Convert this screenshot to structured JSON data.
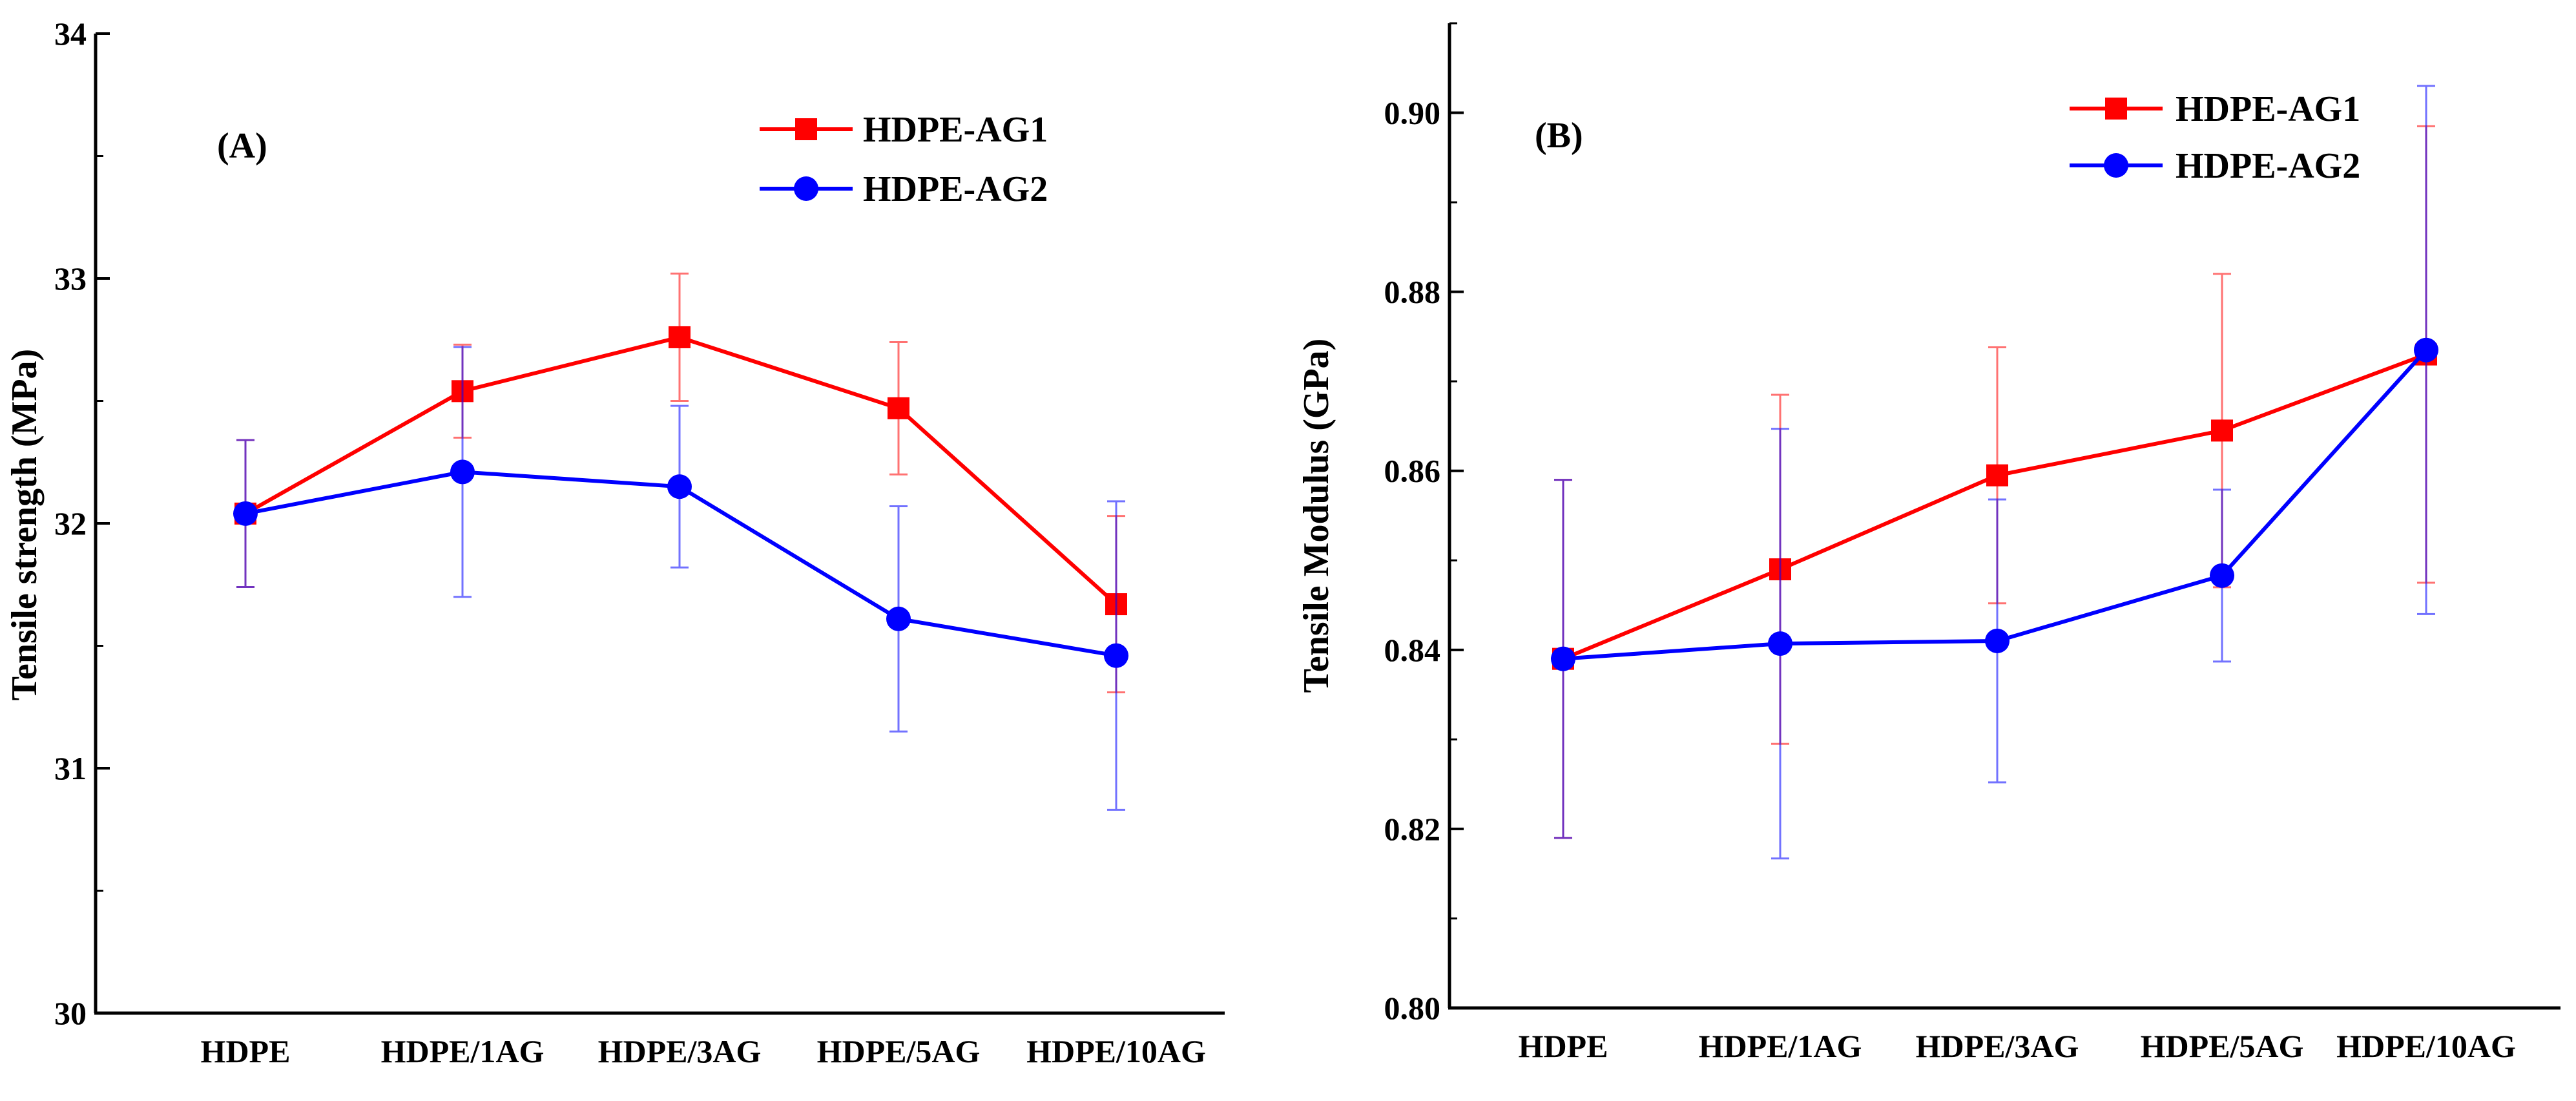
{
  "chart_data": [
    {
      "type": "line",
      "panel_label": "(A)",
      "title": "",
      "xlabel": "",
      "ylabel": "Tensile strength (MPa)",
      "categories": [
        "HDPE",
        "HDPE/1AG",
        "HDPE/3AG",
        "HDPE/5AG",
        "HDPE/10AG"
      ],
      "ylim": [
        30,
        34
      ],
      "yticks": [
        "30",
        "31",
        "32",
        "33",
        "34"
      ],
      "grid": false,
      "legend_position": "top-right",
      "series": [
        {
          "name": "HDPE-AG1",
          "color": "#ff0000",
          "marker": "square",
          "values": [
            32.04,
            32.54,
            32.76,
            32.47,
            31.67
          ],
          "errors": [
            0.3,
            0.19,
            0.26,
            0.27,
            0.36
          ]
        },
        {
          "name": "HDPE-AG2",
          "color": "#0000ff",
          "marker": "circle",
          "values": [
            32.04,
            32.21,
            32.15,
            31.61,
            31.46
          ],
          "errors": [
            0.3,
            0.51,
            0.33,
            0.46,
            0.63
          ]
        }
      ]
    },
    {
      "type": "line",
      "panel_label": "(B)",
      "title": "",
      "xlabel": "",
      "ylabel": "Tensile Modulus (GPa)",
      "categories": [
        "HDPE",
        "HDPE/1AG",
        "HDPE/3AG",
        "HDPE/5AG",
        "HDPE/10AG"
      ],
      "ylim": [
        0.8,
        0.91
      ],
      "yticks": [
        "0.80",
        "0.82",
        "0.84",
        "0.86",
        "0.88",
        "0.90"
      ],
      "grid": false,
      "legend_position": "top-right",
      "series": [
        {
          "name": "HDPE-AG1",
          "color": "#ff0000",
          "marker": "square",
          "values": [
            0.839,
            0.849,
            0.8595,
            0.8645,
            0.873
          ],
          "errors": [
            0.02,
            0.0195,
            0.0143,
            0.0175,
            0.0255
          ]
        },
        {
          "name": "HDPE-AG2",
          "color": "#0000ff",
          "marker": "circle",
          "values": [
            0.839,
            0.8407,
            0.841,
            0.8483,
            0.8735
          ],
          "errors": [
            0.02,
            0.024,
            0.0158,
            0.0096,
            0.0295
          ]
        }
      ]
    }
  ]
}
